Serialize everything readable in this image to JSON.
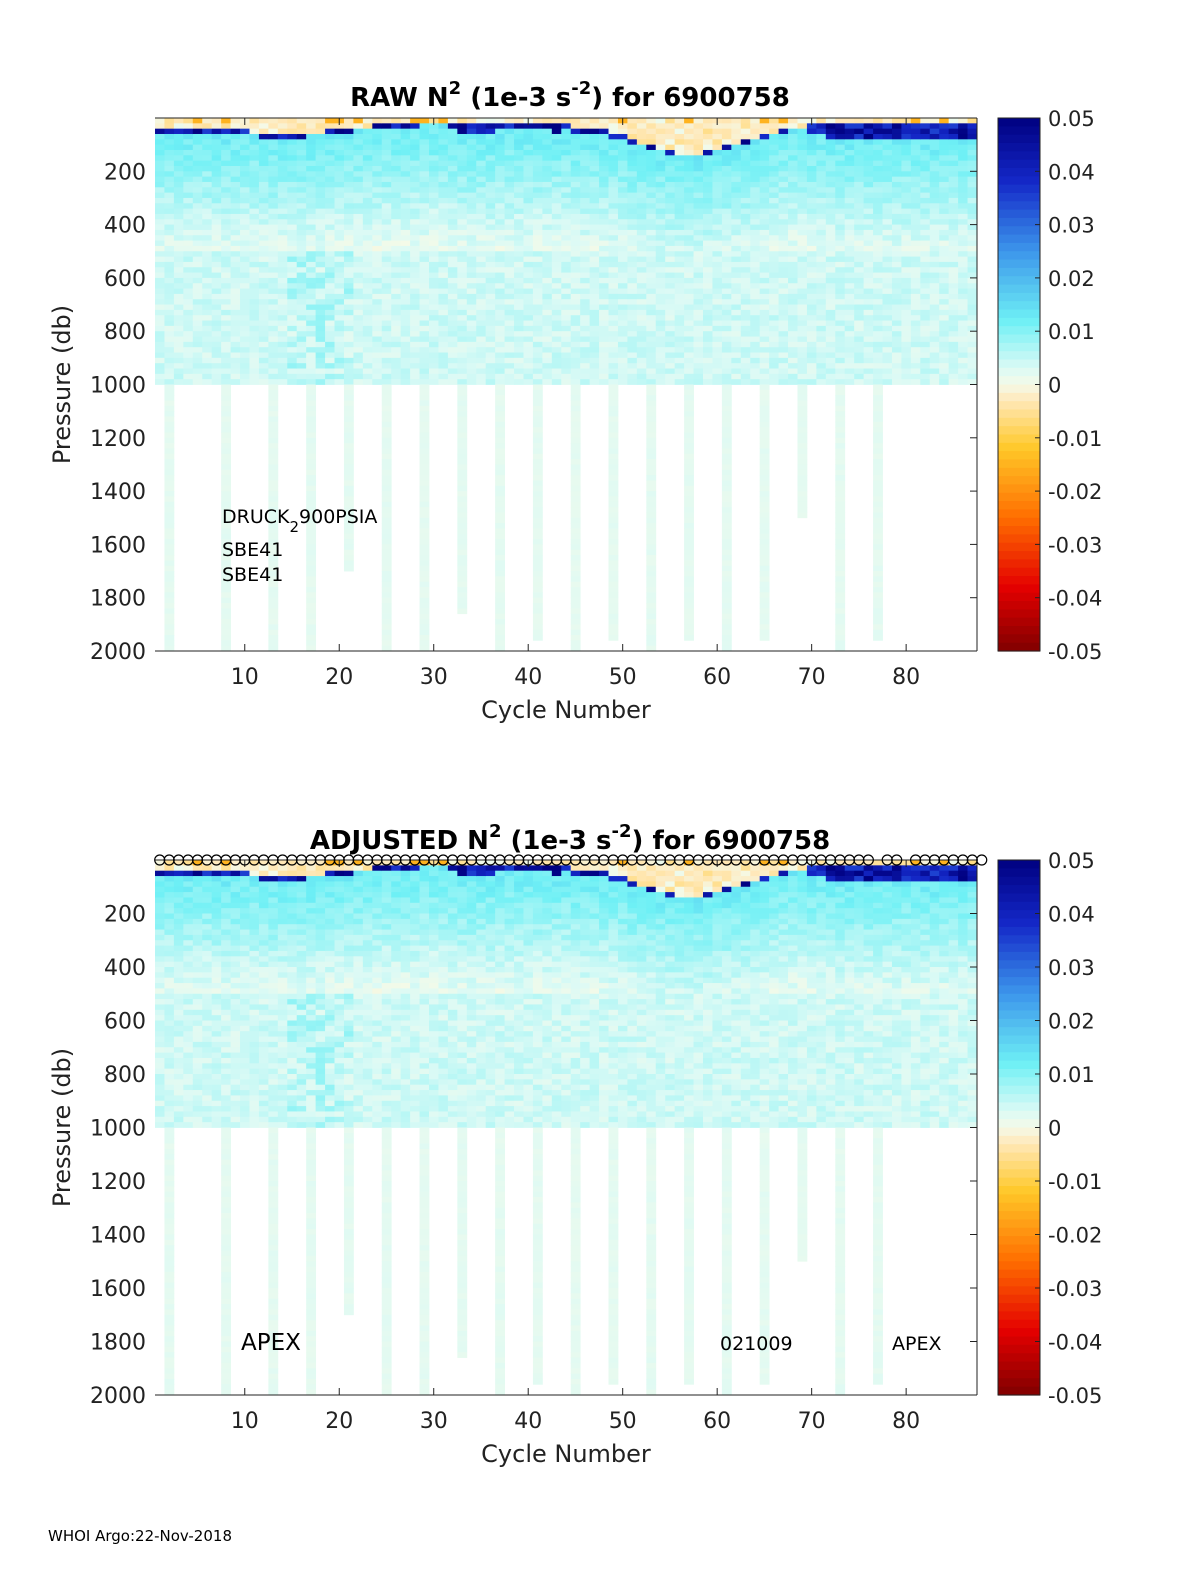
{
  "footer": "WHOI Argo:22-Nov-2018",
  "chart_data": [
    {
      "type": "heatmap",
      "title": {
        "prefix": "RAW N",
        "sup1": "2",
        "mid": " (1e-3 s",
        "sup2": "-2",
        "suffix": ") for 6900758"
      },
      "xlabel": "Cycle Number",
      "ylabel": "Pressure (db)",
      "xlim": [
        1,
        87
      ],
      "ylim": [
        0,
        2000
      ],
      "y_reversed": true,
      "x_ticks": [
        "10",
        "20",
        "30",
        "40",
        "50",
        "60",
        "70",
        "80"
      ],
      "y_ticks": [
        "200",
        "400",
        "600",
        "800",
        "1000",
        "1200",
        "1400",
        "1600",
        "1800",
        "2000"
      ],
      "colorbar": {
        "min": -0.05,
        "max": 0.05,
        "colormap": "jet-like",
        "ticks": [
          "0.05",
          "0.04",
          "0.03",
          "0.02",
          "0.01",
          "0",
          "-0.01",
          "-0.02",
          "-0.03",
          "-0.04",
          "-0.05"
        ]
      },
      "annotations": {
        "sensor_p": "DRUCK",
        "sensor_p_sub": "2",
        "sensor_p_rest": "900PSIA",
        "sensor_t": "SBE41",
        "sensor_s": "SBE41"
      },
      "qc_markers": false,
      "profile_depth_db": [
        1000,
        2000,
        1000,
        1000,
        1000,
        1000,
        1000,
        2000,
        1000,
        1000,
        1000,
        1000,
        2000,
        1000,
        1000,
        1000,
        2000,
        1000,
        1000,
        1000,
        1700,
        1000,
        1000,
        1000,
        2000,
        1000,
        1000,
        1000,
        2000,
        1000,
        1000,
        1000,
        1850,
        1000,
        1000,
        1000,
        2000,
        1000,
        1000,
        1000,
        1950,
        1000,
        1000,
        1000,
        2000,
        1000,
        1000,
        1000,
        1950,
        1000,
        1000,
        1000,
        2000,
        1000,
        1000,
        1000,
        1950,
        1000,
        1000,
        1000,
        2000,
        1000,
        1000,
        1000,
        1950,
        1000,
        1000,
        1000,
        1500,
        1000,
        1000,
        1000,
        2000,
        1000,
        1000,
        1000,
        1950,
        1000,
        1000,
        1000,
        1000,
        1000,
        1000,
        1000,
        1000,
        1000,
        1000
      ],
      "mixed_layer_db": [
        25,
        35,
        30,
        25,
        30,
        30,
        35,
        40,
        35,
        40,
        45,
        55,
        60,
        55,
        60,
        55,
        50,
        45,
        40,
        35,
        35,
        30,
        25,
        20,
        20,
        20,
        15,
        15,
        10,
        10,
        10,
        10,
        10,
        10,
        10,
        10,
        10,
        10,
        10,
        10,
        15,
        15,
        20,
        20,
        25,
        30,
        35,
        40,
        45,
        55,
        70,
        85,
        100,
        110,
        120,
        130,
        130,
        130,
        120,
        110,
        100,
        90,
        80,
        70,
        60,
        50,
        40,
        30,
        25,
        20,
        15,
        15,
        15,
        10,
        10,
        10,
        10,
        10,
        10,
        10,
        10,
        10,
        10,
        10,
        10,
        10,
        10
      ],
      "deep_blue_band_db": [
        30,
        20,
        20,
        20,
        25,
        20,
        20,
        15,
        15,
        10,
        10,
        10,
        10,
        10,
        10,
        10,
        10,
        10,
        10,
        10,
        10,
        10,
        10,
        10,
        10,
        10,
        10,
        10,
        10,
        10,
        10,
        30,
        40,
        40,
        35,
        35,
        30,
        30,
        30,
        30,
        25,
        25,
        25,
        20,
        20,
        20,
        20,
        20,
        20,
        20,
        20,
        15,
        10,
        10,
        10,
        10,
        10,
        10,
        10,
        10,
        10,
        10,
        10,
        10,
        10,
        10,
        10,
        10,
        15,
        30,
        40,
        50,
        60,
        60,
        60,
        60,
        60,
        60,
        60,
        60,
        60,
        60,
        60,
        60,
        60,
        60,
        60
      ]
    },
    {
      "type": "heatmap",
      "title": {
        "prefix": "ADJUSTED N",
        "sup1": "2",
        "mid": " (1e-3 s",
        "sup2": "-2",
        "suffix": ") for 6900758"
      },
      "xlabel": "Cycle Number",
      "ylabel": "Pressure (db)",
      "xlim": [
        1,
        87
      ],
      "ylim": [
        0,
        2000
      ],
      "y_reversed": true,
      "x_ticks": [
        "10",
        "20",
        "30",
        "40",
        "50",
        "60",
        "70",
        "80"
      ],
      "y_ticks": [
        "200",
        "400",
        "600",
        "800",
        "1000",
        "1200",
        "1400",
        "1600",
        "1800",
        "2000"
      ],
      "colorbar": {
        "min": -0.05,
        "max": 0.05,
        "colormap": "jet-like",
        "ticks": [
          "0.05",
          "0.04",
          "0.03",
          "0.02",
          "0.01",
          "0",
          "-0.01",
          "-0.02",
          "-0.03",
          "-0.04",
          "-0.05"
        ]
      },
      "annotations": {
        "platform_left": "APEX",
        "serial": "021009",
        "platform_right": "APEX"
      },
      "qc_markers": true,
      "profile_depth_db": [
        1000,
        2000,
        1000,
        1000,
        1000,
        1000,
        1000,
        2000,
        1000,
        1000,
        1000,
        1000,
        2000,
        1000,
        1000,
        1000,
        2000,
        1000,
        1000,
        1000,
        1700,
        1000,
        1000,
        1000,
        2000,
        1000,
        1000,
        1000,
        2000,
        1000,
        1000,
        1000,
        1850,
        1000,
        1000,
        1000,
        2000,
        1000,
        1000,
        1000,
        1950,
        1000,
        1000,
        1000,
        2000,
        1000,
        1000,
        1000,
        1950,
        1000,
        1000,
        1000,
        2000,
        1000,
        1000,
        1000,
        1950,
        1000,
        1000,
        1000,
        2000,
        1000,
        1000,
        1000,
        1950,
        1000,
        1000,
        1000,
        1500,
        1000,
        1000,
        1000,
        2000,
        1000,
        1000,
        1000,
        1950,
        1000,
        1000,
        1000,
        1000,
        1000,
        1000,
        1000,
        1000,
        1000,
        1000
      ],
      "mixed_layer_db": [
        25,
        35,
        30,
        25,
        30,
        30,
        35,
        40,
        35,
        40,
        45,
        55,
        60,
        55,
        60,
        55,
        50,
        45,
        40,
        35,
        35,
        30,
        25,
        20,
        20,
        20,
        15,
        15,
        10,
        10,
        10,
        10,
        10,
        10,
        10,
        10,
        10,
        10,
        10,
        10,
        15,
        15,
        20,
        20,
        25,
        30,
        35,
        40,
        45,
        55,
        70,
        85,
        100,
        110,
        120,
        130,
        130,
        130,
        120,
        110,
        100,
        90,
        80,
        70,
        60,
        50,
        40,
        30,
        25,
        20,
        15,
        15,
        15,
        10,
        10,
        10,
        10,
        10,
        10,
        10,
        10,
        10,
        10,
        10,
        10,
        10,
        10
      ],
      "deep_blue_band_db": [
        30,
        20,
        20,
        20,
        25,
        20,
        20,
        15,
        15,
        10,
        10,
        10,
        10,
        10,
        10,
        10,
        10,
        10,
        10,
        10,
        10,
        10,
        10,
        10,
        10,
        10,
        10,
        10,
        10,
        10,
        10,
        30,
        40,
        40,
        35,
        35,
        30,
        30,
        30,
        30,
        25,
        25,
        25,
        20,
        20,
        20,
        20,
        20,
        20,
        20,
        20,
        15,
        10,
        10,
        10,
        10,
        10,
        10,
        10,
        10,
        10,
        10,
        10,
        10,
        10,
        10,
        10,
        10,
        15,
        30,
        40,
        50,
        60,
        60,
        60,
        60,
        60,
        60,
        60,
        60,
        60,
        60,
        60,
        60,
        60,
        60,
        60
      ]
    }
  ]
}
